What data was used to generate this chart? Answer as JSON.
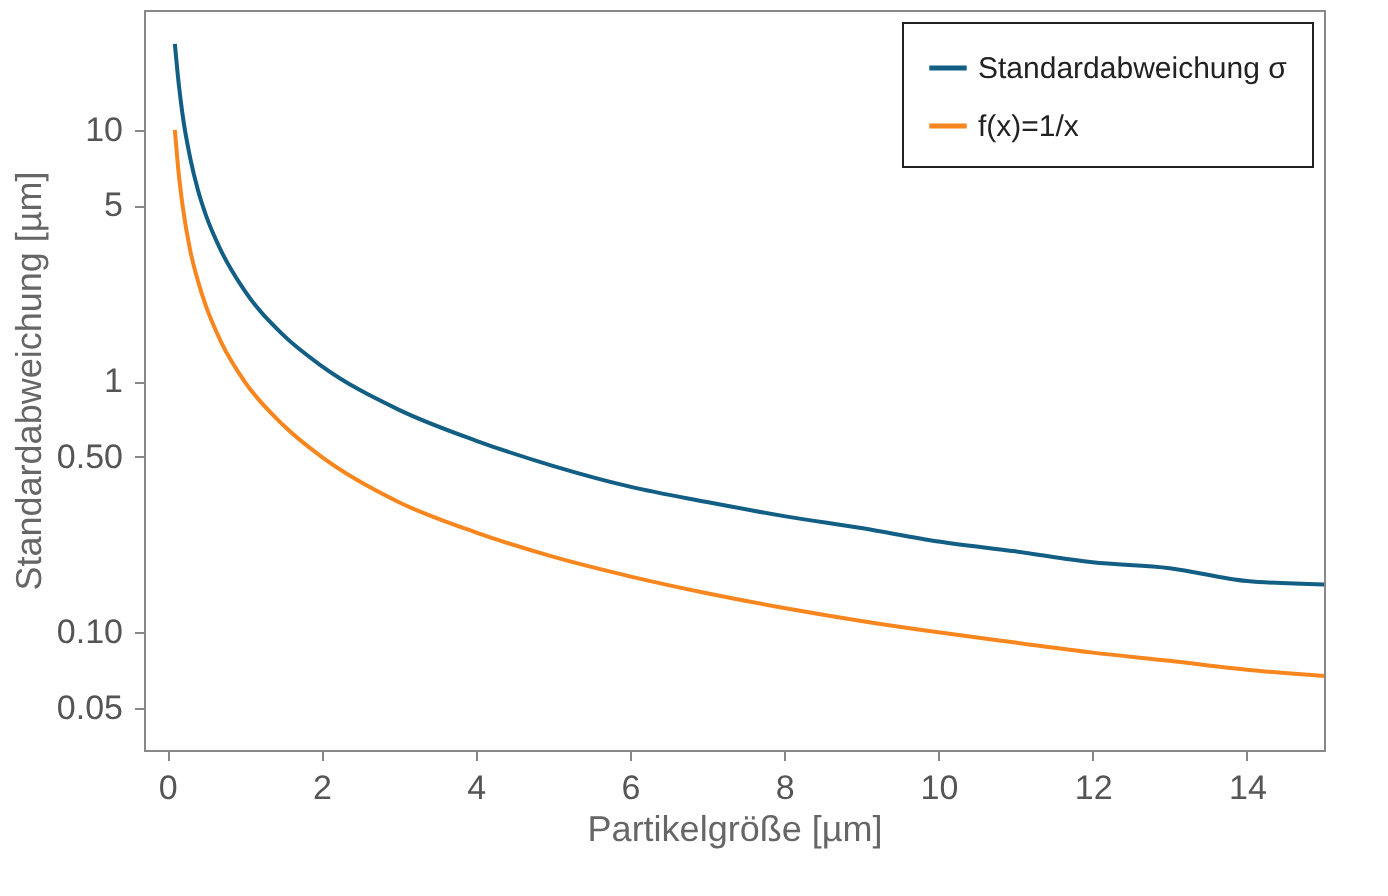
{
  "chart_data": {
    "type": "line",
    "xlabel": "Partikelgröße [µm]",
    "ylabel": "Standardabweichung [µm]",
    "x": [
      0.1,
      0.15,
      0.2,
      0.3,
      0.4,
      0.5,
      0.7,
      1,
      1.5,
      2,
      3,
      4,
      5,
      6,
      7,
      8,
      9,
      10,
      11,
      12,
      13,
      14,
      15
    ],
    "series": [
      {
        "name": "Standardabweichung σ",
        "color": "#135e84",
        "values": [
          22,
          15.3,
          11.5,
          7.7,
          5.75,
          4.6,
          3.3,
          2.3,
          1.53,
          1.15,
          0.77,
          0.58,
          0.46,
          0.38,
          0.33,
          0.29,
          0.26,
          0.23,
          0.21,
          0.19,
          0.18,
          0.16,
          0.155
        ]
      },
      {
        "name": "f(x)=1/x",
        "color": "#f7861f",
        "values": [
          10,
          6.7,
          5,
          3.3,
          2.5,
          2,
          1.43,
          1,
          0.67,
          0.5,
          0.33,
          0.25,
          0.2,
          0.167,
          0.143,
          0.125,
          0.111,
          0.1,
          0.091,
          0.083,
          0.077,
          0.071,
          0.067
        ]
      }
    ],
    "xlim": [
      -0.3,
      15
    ],
    "xticks": [
      0,
      2,
      4,
      6,
      8,
      10,
      12,
      14
    ],
    "ylim": [
      0.034,
      30
    ],
    "yticks": [
      0.05,
      {
        "value": 0.1,
        "label": "0.10"
      },
      {
        "value": 0.5,
        "label": "0.50"
      },
      1,
      5,
      10
    ],
    "log": "y",
    "grid": false,
    "legend": "top right",
    "line_style": "solid",
    "marker": "none"
  }
}
